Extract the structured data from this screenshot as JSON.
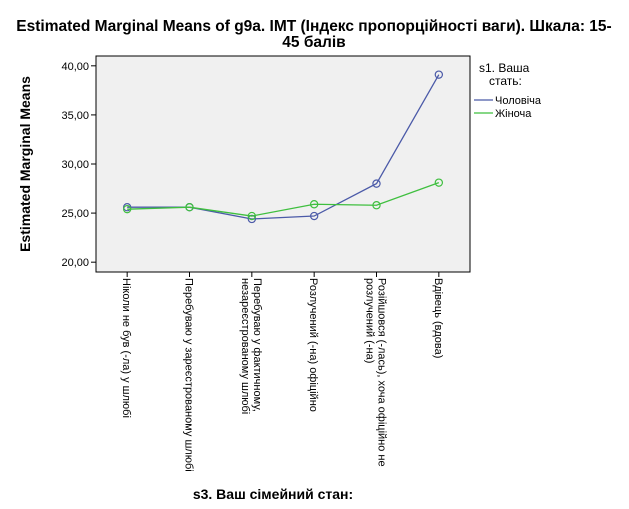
{
  "chart_data": {
    "type": "line",
    "title": "Estimated Marginal Means of g9a. IMT (Індекс пропорційності ваги). Шкала: 15-45 балів",
    "title_lines": [
      "Estimated Marginal Means of g9a. IMT (Індекс пропорційності ваги). Шкала: 15-",
      "45 балів"
    ],
    "xlabel": "s3. Ваш сімейний стан:",
    "ylabel": "Estimated Marginal Means",
    "ylim": [
      19,
      41
    ],
    "yticks": [
      20,
      25,
      30,
      35,
      40
    ],
    "ytick_labels": [
      "20,00",
      "25,00",
      "30,00",
      "35,00",
      "40,00"
    ],
    "categories": [
      "Ніколи не був (-ла) у шлюбі",
      "Перебуваю у зареєстрованому шлюбі",
      "Перебуваю у фактичному, незареєстрованому шлюбі",
      "Розлучений (-на) офіційно",
      "Розійшовся (-лась), хоча офіційно не розлучений (-на)",
      "Вдівець (вдова)"
    ],
    "category_lines": [
      [
        "Ніколи не був (-ла) у шлюбі"
      ],
      [
        "Перебуваю у зареєстрованому шлюбі"
      ],
      [
        "Перебуваю у фактичному,",
        "незареєстрованому шлюбі"
      ],
      [
        "Розлучений (-на) офіційно"
      ],
      [
        "Розійшовся (-лась), хоча офіційно не",
        "розлучений (-на)"
      ],
      [
        "Вдівець (вдова)"
      ]
    ],
    "legend": {
      "title_lines": [
        "s1. Ваша",
        "стать:"
      ],
      "position": "right"
    },
    "series": [
      {
        "name": "Чоловіча",
        "color": "#4b5aa8",
        "values": [
          25.6,
          25.6,
          24.4,
          24.7,
          28.0,
          39.1
        ]
      },
      {
        "name": "Жіноча",
        "color": "#3fbf3f",
        "values": [
          25.4,
          25.6,
          24.7,
          25.9,
          25.8,
          28.1
        ]
      }
    ],
    "plot_background": "#f0f0f0",
    "grid": false
  }
}
